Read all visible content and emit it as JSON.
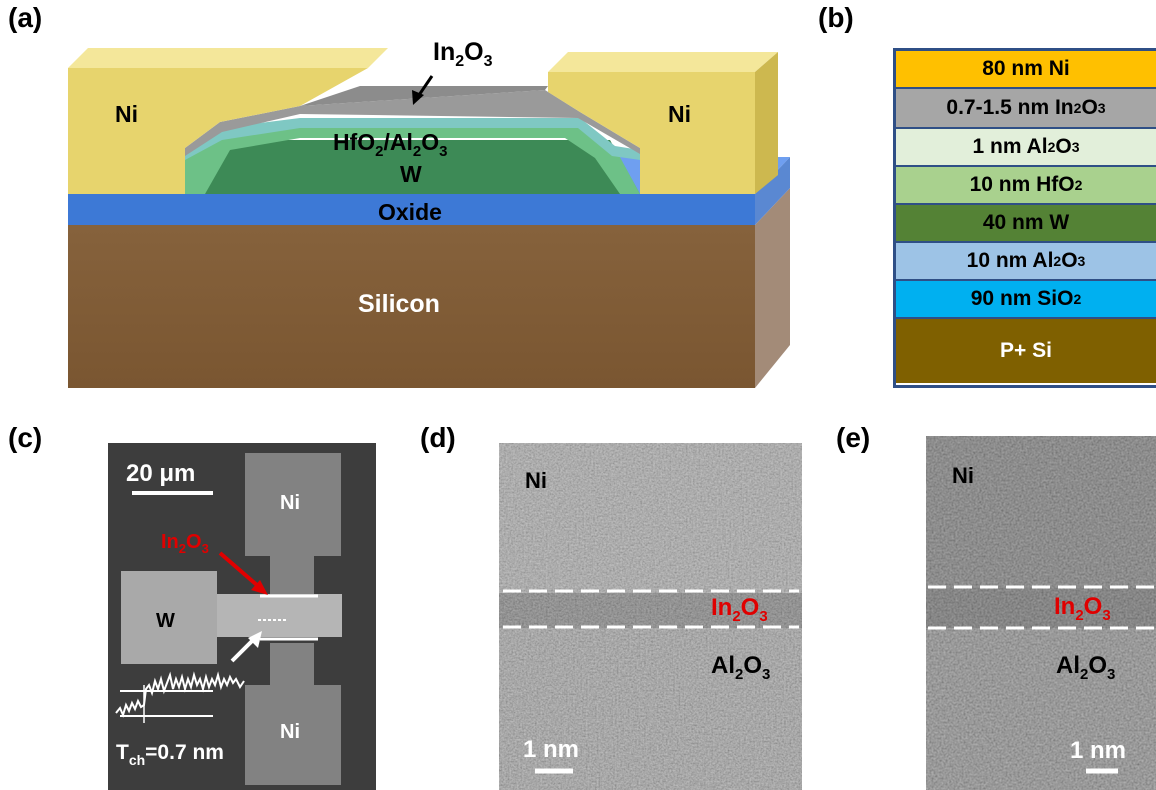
{
  "figure": {
    "panel_a": {
      "label": "(a)",
      "texts": {
        "ni_left": "Ni",
        "ni_right": "Ni",
        "channel": "In",
        "channel_sub1": "2",
        "channel_mid": "O",
        "channel_sub2": "3",
        "dielectric_a": "HfO",
        "dielectric_sub_a": "2",
        "dielectric_b": "/Al",
        "dielectric_sub_b": "2",
        "dielectric_c": "O",
        "dielectric_sub_c": "3",
        "gate": "W",
        "oxide": "Oxide",
        "substrate": "Silicon"
      },
      "colors": {
        "ni": "#e7d46d",
        "in2o3": "#9a9a9a",
        "dielectric": "#6dc187",
        "w": "#3d8a56",
        "oxide": "#3d79d6",
        "silicon": "#7d5a36"
      }
    },
    "panel_b": {
      "label": "(b)",
      "layers": [
        {
          "text": "80 nm Ni",
          "sub": "",
          "tail": "",
          "color": "#ffc000"
        },
        {
          "text": "0.7-1.5 nm In",
          "sub": "2",
          "tail": "O",
          "sub2": "3",
          "color": "#a6a6a6"
        },
        {
          "text": "1 nm Al",
          "sub": "2",
          "tail": "O",
          "sub2": "3",
          "color": "#e2efda"
        },
        {
          "text": "10 nm HfO",
          "sub": "2",
          "tail": "",
          "color": "#a9d18e"
        },
        {
          "text": "40 nm W",
          "sub": "",
          "tail": "",
          "color": "#548235"
        },
        {
          "text": "10 nm Al",
          "sub": "2",
          "tail": "O",
          "sub2": "3",
          "color": "#9dc3e6"
        },
        {
          "text": "90 nm SiO",
          "sub": "2",
          "tail": "",
          "color": "#00b0f0"
        },
        {
          "text": "P+ Si",
          "sub": "",
          "tail": "",
          "color": "#7f6000",
          "light": true
        }
      ]
    },
    "panel_c": {
      "label": "(c)",
      "scale": "20 μm",
      "ni_top": "Ni",
      "ni_bottom": "Ni",
      "w": "W",
      "channel_a": "In",
      "channel_s1": "2",
      "channel_b": "O",
      "channel_s2": "3",
      "thickness_a": "T",
      "thickness_sub": "ch",
      "thickness_b": "=0.7 nm"
    },
    "panel_d": {
      "label": "(d)",
      "ni": "Ni",
      "in_a": "In",
      "in_s1": "2",
      "in_b": "O",
      "in_s2": "3",
      "al_a": "Al",
      "al_s1": "2",
      "al_b": "O",
      "al_s2": "3",
      "scale": "1 nm"
    },
    "panel_e": {
      "label": "(e)",
      "ni": "Ni",
      "in_a": "In",
      "in_s1": "2",
      "in_b": "O",
      "in_s2": "3",
      "al_a": "Al",
      "al_s1": "2",
      "al_b": "O",
      "al_s2": "3",
      "scale": "1 nm"
    }
  }
}
